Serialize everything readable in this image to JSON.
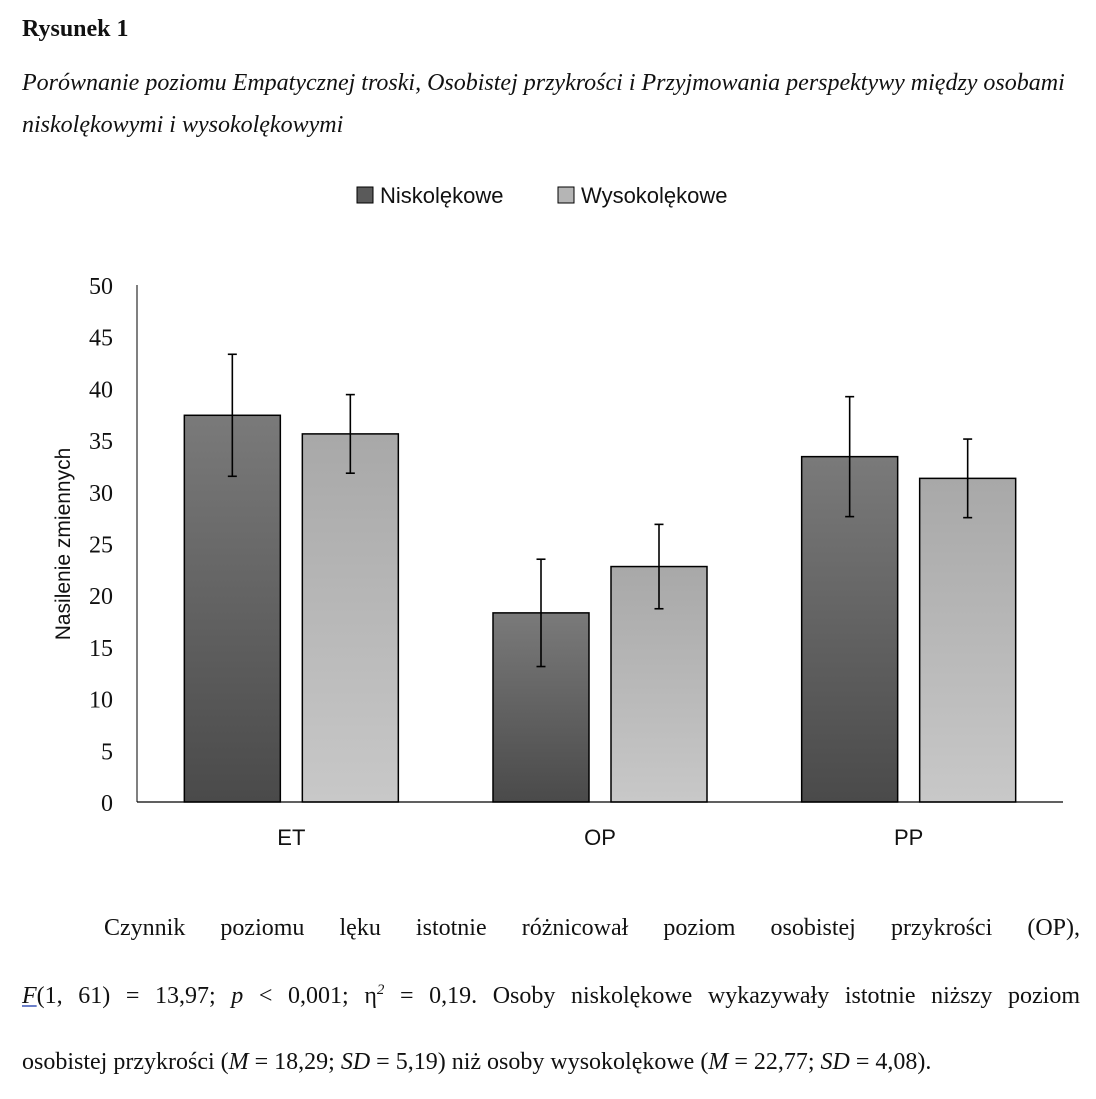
{
  "figure": {
    "label": "Rysunek 1",
    "title": "Porównanie poziomu Empatycznej troski, Osobistej przykrości i Przyjmowania perspektywy między osobami niskolękowymi i wysokolękowymi"
  },
  "chart_data": {
    "type": "bar",
    "categories": [
      "ET",
      "OP",
      "PP"
    ],
    "series": [
      {
        "name": "Niskolękowe",
        "values": [
          37.4,
          18.29,
          33.4
        ],
        "error": [
          5.9,
          5.19,
          5.8
        ],
        "color": "#5a5a5a"
      },
      {
        "name": "Wysokolękowe",
        "values": [
          35.6,
          22.77,
          31.3
        ],
        "error": [
          3.8,
          4.08,
          3.8
        ],
        "color": "#b5b5b5"
      }
    ],
    "xlabel": "",
    "ylabel": "Nasilenie  zmiennych",
    "ylim": [
      0,
      50
    ],
    "yticks": [
      "0",
      "5",
      "10",
      "15",
      "20",
      "25",
      "30",
      "35",
      "40",
      "45",
      "50"
    ],
    "grid": false,
    "legend_position": "top-center"
  },
  "text": {
    "p1": "Czynnik poziomu lęku istotnie różnicował poziom osobistej przykrości (OP),",
    "p2": {
      "f": "F",
      "a": "(1, 61) = 13,97; ",
      "p": "p",
      "b": " < 0,001; η",
      "sup": "2",
      "c": " = 0,19. Osoby niskolękowe wykazywały istotnie niższy poziom"
    },
    "p3": {
      "a": "osobistej przykrości (",
      "m1": "M",
      "b": " = 18,29; ",
      "sd1": "SD",
      "c": " = 5,19) niż osoby wysokolękowe (",
      "m2": "M",
      "d": " = 22,77; ",
      "sd2": "SD",
      "e": " = 4,08)."
    }
  }
}
